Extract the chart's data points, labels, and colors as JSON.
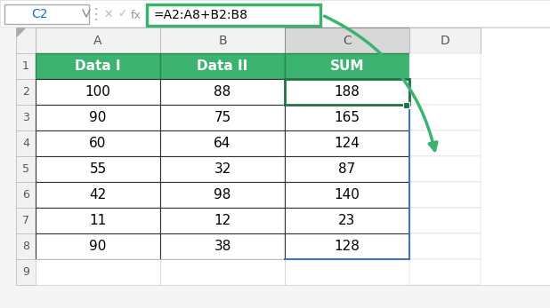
{
  "cell_ref": "C2",
  "formula": "=A2:A8+B2:B8",
  "col_labels": [
    "A",
    "B",
    "C",
    "D"
  ],
  "row_labels": [
    "1",
    "2",
    "3",
    "4",
    "5",
    "6",
    "7",
    "8",
    "9"
  ],
  "table_headers": [
    "Data I",
    "Data II",
    "SUM"
  ],
  "col_A": [
    100,
    90,
    60,
    55,
    42,
    11,
    90
  ],
  "col_B": [
    88,
    75,
    64,
    32,
    98,
    12,
    38
  ],
  "col_C": [
    188,
    165,
    124,
    87,
    140,
    23,
    128
  ],
  "header_bg": "#3CB371",
  "header_text": "#ffffff",
  "col_selected_bg": "#d8d8d8",
  "formula_bar_border": "#3CB371",
  "arrow_color": "#3CB371",
  "selected_cell_border": "#217346",
  "blue_border_color": "#4472c4",
  "fill_handle_color": "#217346",
  "toolbar_bg": "#f0f0f0",
  "figure_bg": "#f5f5f5",
  "grid_dark": "#333333",
  "grid_light": "#cccccc",
  "row_num_color": "#555555"
}
